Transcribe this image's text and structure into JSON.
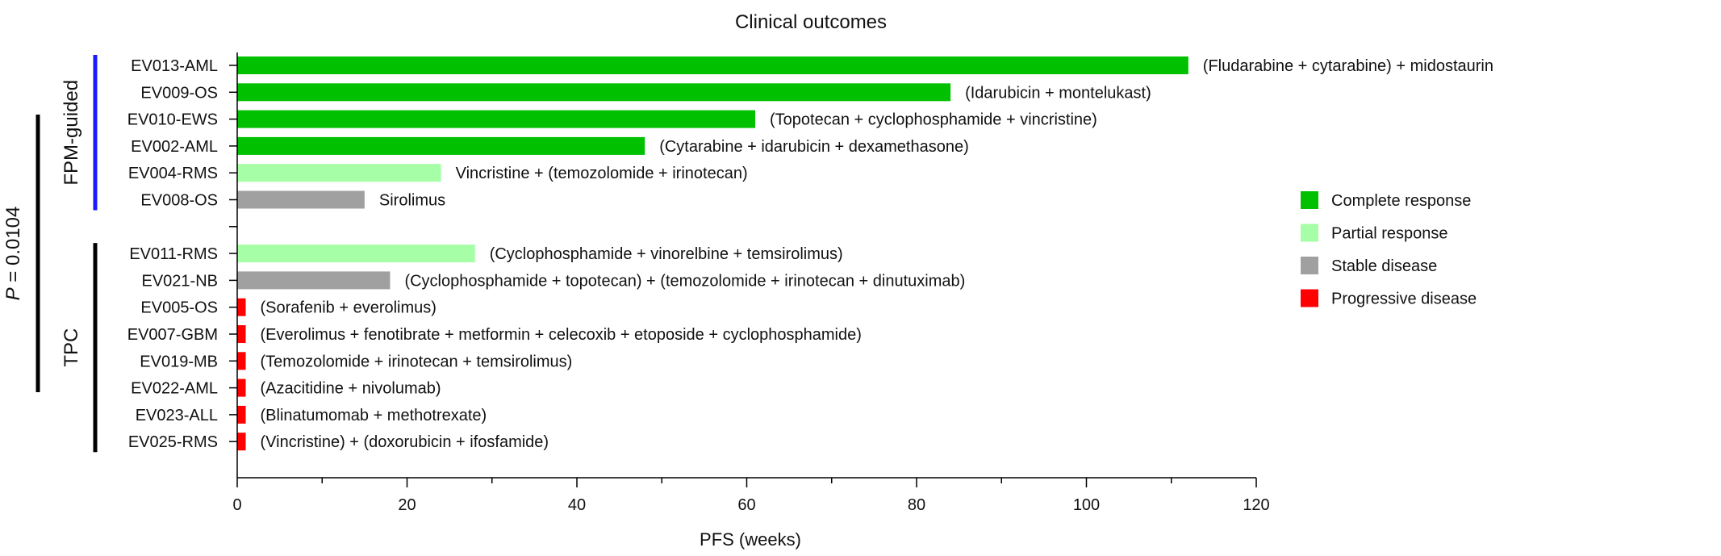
{
  "chart_data": {
    "type": "bar",
    "orientation": "horizontal",
    "title": "Clinical outcomes",
    "xlabel": "PFS (weeks)",
    "ylabel": "",
    "xlim": [
      0,
      120
    ],
    "xticks": [
      0,
      20,
      40,
      60,
      80,
      100,
      120
    ],
    "groups": [
      {
        "name": "FPM-guided",
        "color": "#1a1aff",
        "rows": [
          {
            "id": "EV013-AML",
            "value": 112,
            "response": "Complete response",
            "treatment": "(Fludarabine + cytarabine) + midostaurin"
          },
          {
            "id": "EV009-OS",
            "value": 84,
            "response": "Complete response",
            "treatment": "(Idarubicin + montelukast)"
          },
          {
            "id": "EV010-EWS",
            "value": 61,
            "response": "Complete response",
            "treatment": "(Topotecan + cyclophosphamide + vincristine)"
          },
          {
            "id": "EV002-AML",
            "value": 48,
            "response": "Complete response",
            "treatment": "(Cytarabine + idarubicin + dexamethasone)"
          },
          {
            "id": "EV004-RMS",
            "value": 24,
            "response": "Partial response",
            "treatment": "Vincristine + (temozolomide + irinotecan)"
          },
          {
            "id": "EV008-OS",
            "value": 15,
            "response": "Stable disease",
            "treatment": "Sirolimus"
          }
        ]
      },
      {
        "name": "TPC",
        "color": "#000000",
        "rows": [
          {
            "id": "EV011-RMS",
            "value": 28,
            "response": "Partial response",
            "treatment": "(Cyclophosphamide + vinorelbine + temsirolimus)"
          },
          {
            "id": "EV021-NB",
            "value": 18,
            "response": "Stable disease",
            "treatment": "(Cyclophosphamide + topotecan) + (temozolomide + irinotecan + dinutuximab)"
          },
          {
            "id": "EV005-OS",
            "value": 1,
            "response": "Progressive disease",
            "treatment": "(Sorafenib + everolimus)"
          },
          {
            "id": "EV007-GBM",
            "value": 1,
            "response": "Progressive disease",
            "treatment": "(Everolimus + fenotibrate + metformin + celecoxib + etoposide + cyclophosphamide)"
          },
          {
            "id": "EV019-MB",
            "value": 1,
            "response": "Progressive disease",
            "treatment": "(Temozolomide + irinotecan + temsirolimus)"
          },
          {
            "id": "EV022-AML",
            "value": 1,
            "response": "Progressive disease",
            "treatment": "(Azacitidine + nivolumab)"
          },
          {
            "id": "EV023-ALL",
            "value": 1,
            "response": "Progressive disease",
            "treatment": "(Blinatumomab + methotrexate)"
          },
          {
            "id": "EV025-RMS",
            "value": 1,
            "response": "Progressive disease",
            "treatment": "(Vincristine) + (doxorubicin + ifosfamide)"
          }
        ]
      }
    ],
    "legend": {
      "placement": "right",
      "entries": [
        {
          "name": "Complete response",
          "color": "#00c000"
        },
        {
          "name": "Partial response",
          "color": "#a6ffa6"
        },
        {
          "name": "Stable disease",
          "color": "#a0a0a0"
        },
        {
          "name": "Progressive disease",
          "color": "#ff0000"
        }
      ]
    },
    "p_value": {
      "prefix": "P",
      "text": " = 0.0104"
    },
    "grid": false
  }
}
